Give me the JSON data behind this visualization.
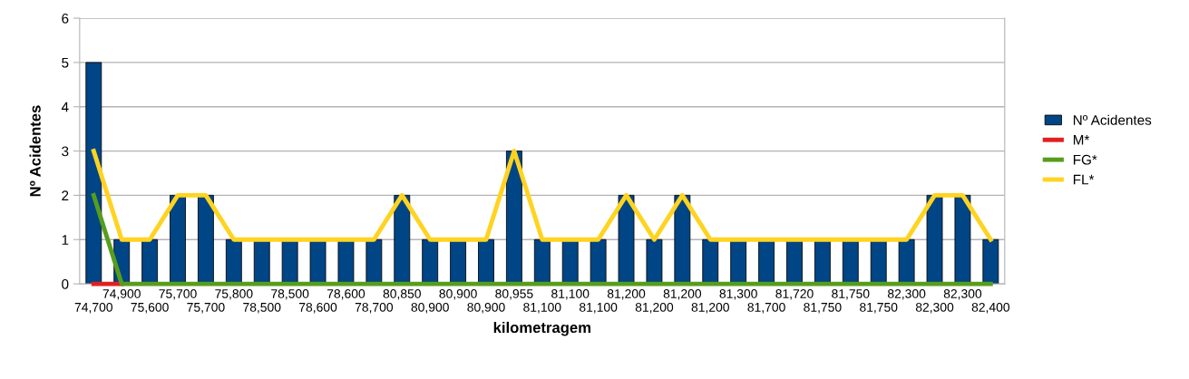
{
  "chart_data": {
    "type": "bar",
    "xlabel": "kilometragem",
    "ylabel": "Nº Acidentes",
    "categories": [
      "74,700",
      "74,900",
      "75,600",
      "75,700",
      "75,700",
      "75,800",
      "78,500",
      "78,500",
      "78,600",
      "78,600",
      "78,700",
      "80,850",
      "80,900",
      "80,900",
      "80,900",
      "80,955",
      "81,100",
      "81,100",
      "81,100",
      "81,200",
      "81,200",
      "81,200",
      "81,200",
      "81,300",
      "81,700",
      "81,720",
      "81,750",
      "81,750",
      "81,750",
      "82,300",
      "82,300",
      "82,300",
      "82,400"
    ],
    "series": [
      {
        "name": "Nº Acidentes",
        "color": "#004586",
        "values": [
          5,
          1,
          1,
          2,
          2,
          1,
          1,
          1,
          1,
          1,
          1,
          2,
          1,
          1,
          1,
          3,
          1,
          1,
          1,
          2,
          1,
          2,
          1,
          1,
          1,
          1,
          1,
          1,
          1,
          1,
          2,
          2,
          1
        ]
      },
      {
        "name": "M*",
        "type": "line",
        "color": "#e02020",
        "values": [
          0,
          0,
          null,
          null,
          null,
          null,
          null,
          null,
          null,
          null,
          null,
          null,
          null,
          null,
          null,
          null,
          null,
          null,
          null,
          null,
          null,
          null,
          null,
          null,
          null,
          null,
          null,
          null,
          null,
          null,
          null,
          null,
          null
        ]
      },
      {
        "name": "FG*",
        "type": "line",
        "color": "#579d1c",
        "values": [
          2,
          0,
          0,
          0,
          0,
          0,
          0,
          0,
          0,
          0,
          0,
          0,
          0,
          0,
          0,
          0,
          0,
          0,
          0,
          0,
          0,
          0,
          0,
          0,
          0,
          0,
          0,
          0,
          0,
          0,
          0,
          0,
          0
        ]
      },
      {
        "name": "FL*",
        "type": "line",
        "color": "#ffd320",
        "values": [
          3,
          1,
          1,
          2,
          2,
          1,
          1,
          1,
          1,
          1,
          1,
          2,
          1,
          1,
          1,
          3,
          1,
          1,
          1,
          2,
          1,
          2,
          1,
          1,
          1,
          1,
          1,
          1,
          1,
          1,
          2,
          2,
          1
        ]
      }
    ],
    "ylim": [
      0,
      6
    ],
    "yticks": [
      0,
      1,
      2,
      3,
      4,
      5,
      6
    ],
    "grid": "y",
    "legend": "right",
    "marker": "none",
    "line_style": "solid"
  }
}
